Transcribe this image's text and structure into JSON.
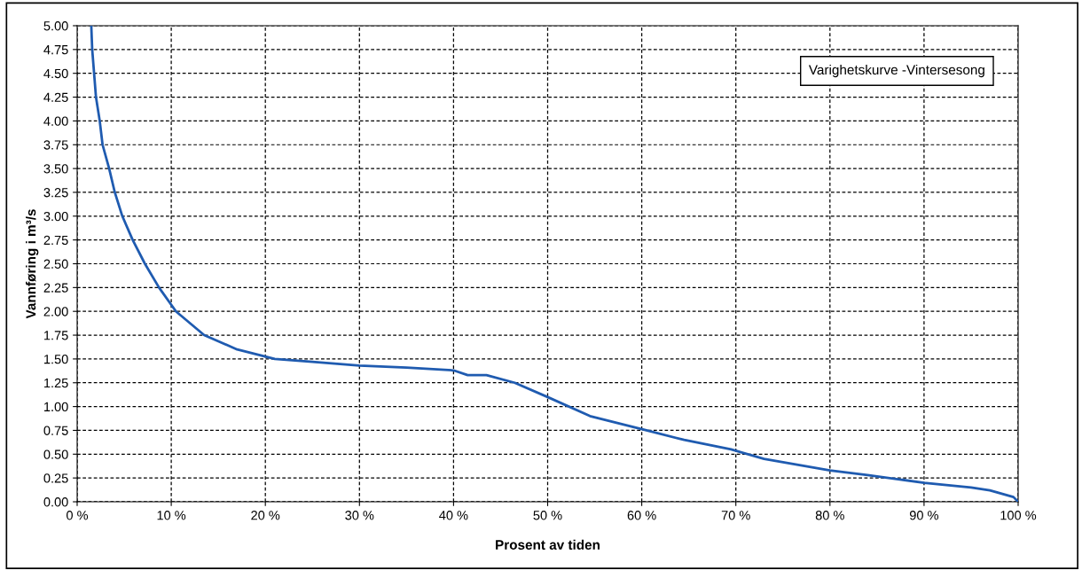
{
  "chart_data": {
    "type": "line",
    "title": "Varighetskurve -Vintersesong",
    "xlabel": "Prosent av tiden",
    "ylabel": "Vannføring i m³/s",
    "series": [
      {
        "color": "#1f5bb0",
        "x": [
          1.5,
          1.6,
          1.8,
          2.0,
          2.4,
          2.7,
          3.4,
          4.0,
          4.8,
          5.9,
          7.2,
          8.7,
          10.5,
          13.5,
          17,
          21,
          25,
          30,
          35,
          40,
          41.5,
          43.5,
          46.5,
          50,
          54.5,
          60.5,
          64.5,
          69.5,
          73,
          80,
          84,
          90,
          95,
          97,
          99.5,
          100
        ],
        "values": [
          5.0,
          4.75,
          4.5,
          4.25,
          4.0,
          3.75,
          3.5,
          3.25,
          3.0,
          2.75,
          2.5,
          2.25,
          2.0,
          1.75,
          1.6,
          1.5,
          1.47,
          1.43,
          1.41,
          1.38,
          1.33,
          1.33,
          1.25,
          1.1,
          0.9,
          0.75,
          0.65,
          0.55,
          0.45,
          0.33,
          0.28,
          0.2,
          0.15,
          0.12,
          0.05,
          0.0
        ]
      }
    ],
    "xlim": [
      0,
      100
    ],
    "xticks": [
      {
        "value": 0,
        "label": "0 %"
      },
      {
        "value": 10,
        "label": "10 %"
      },
      {
        "value": 20,
        "label": "20 %"
      },
      {
        "value": 30,
        "label": "30 %"
      },
      {
        "value": 40,
        "label": "40 %"
      },
      {
        "value": 50,
        "label": "50 %"
      },
      {
        "value": 60,
        "label": "60 %"
      },
      {
        "value": 70,
        "label": "70 %"
      },
      {
        "value": 80,
        "label": "80 %"
      },
      {
        "value": 90,
        "label": "90 %"
      },
      {
        "value": 100,
        "label": "100 %"
      }
    ],
    "ylim": [
      0,
      5
    ],
    "yticks": [
      {
        "value": 0,
        "label": "0.00"
      },
      {
        "value": 0.25,
        "label": "0.25"
      },
      {
        "value": 0.5,
        "label": "0.50"
      },
      {
        "value": 0.75,
        "label": "0.75"
      },
      {
        "value": 1,
        "label": "1.00"
      },
      {
        "value": 1.25,
        "label": "1.25"
      },
      {
        "value": 1.5,
        "label": "1.50"
      },
      {
        "value": 1.75,
        "label": "1.75"
      },
      {
        "value": 2,
        "label": "2.00"
      },
      {
        "value": 2.25,
        "label": "2.25"
      },
      {
        "value": 2.5,
        "label": "2.50"
      },
      {
        "value": 2.75,
        "label": "2.75"
      },
      {
        "value": 3,
        "label": "3.00"
      },
      {
        "value": 3.25,
        "label": "3.25"
      },
      {
        "value": 3.5,
        "label": "3.50"
      },
      {
        "value": 3.75,
        "label": "3.75"
      },
      {
        "value": 4,
        "label": "4.00"
      },
      {
        "value": 4.25,
        "label": "4.25"
      },
      {
        "value": 4.5,
        "label": "4.50"
      },
      {
        "value": 4.75,
        "label": "4.75"
      },
      {
        "value": 5,
        "label": "5.00"
      }
    ],
    "grid": true,
    "marker": "none",
    "line_style": "solid"
  }
}
